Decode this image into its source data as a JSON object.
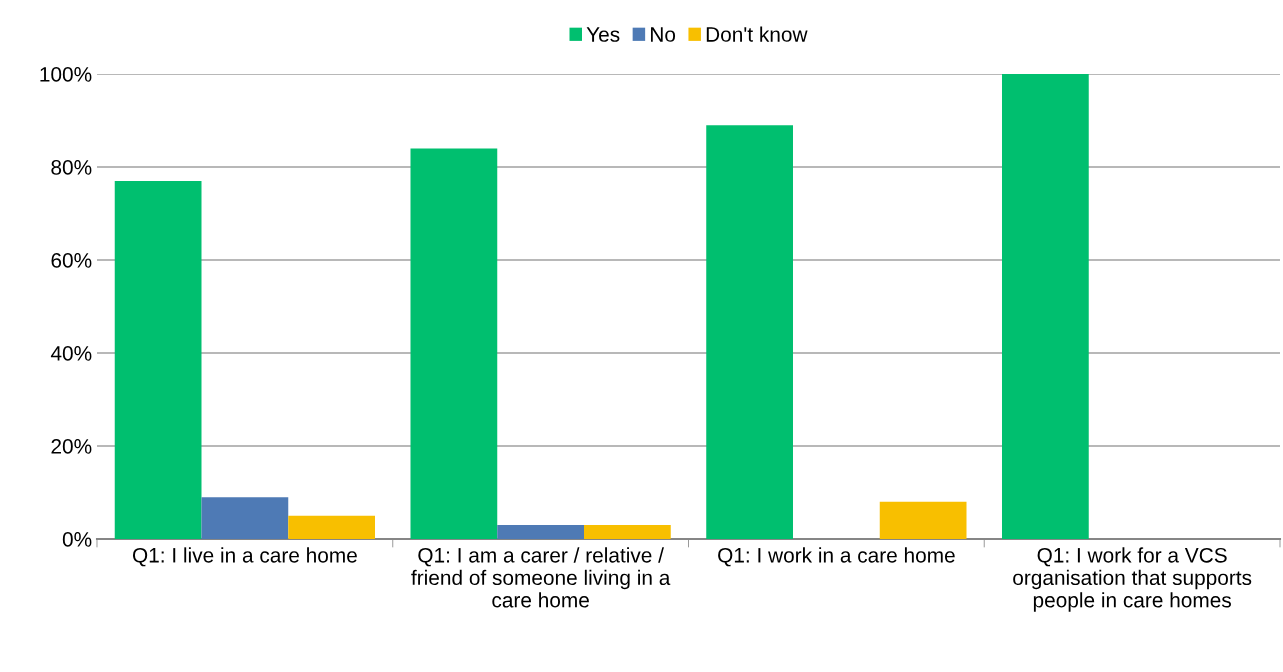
{
  "chart_data": {
    "type": "bar",
    "categories": [
      "Q1: I live in a care home",
      "Q1: I am a carer / relative / friend of someone living in a care home",
      "Q1: I work in a care home",
      "Q1: I work for a VCS organisation that supports people in care homes"
    ],
    "series": [
      {
        "name": "Yes",
        "color": "#00bf6f",
        "values": [
          77,
          84,
          89,
          100
        ]
      },
      {
        "name": "No",
        "color": "#4e7ab5",
        "values": [
          9,
          3,
          0,
          0
        ]
      },
      {
        "name": "Don't know",
        "color": "#f8bf00",
        "values": [
          5,
          3,
          8,
          0
        ]
      }
    ],
    "ylim": [
      0,
      100
    ],
    "yticks": [
      {
        "value": 0,
        "label": "0%"
      },
      {
        "value": 20,
        "label": "20%"
      },
      {
        "value": 40,
        "label": "40%"
      },
      {
        "value": 60,
        "label": "60%"
      },
      {
        "value": 80,
        "label": "80%"
      },
      {
        "value": 100,
        "label": "100%"
      }
    ],
    "grid": "y",
    "legend": "top"
  }
}
